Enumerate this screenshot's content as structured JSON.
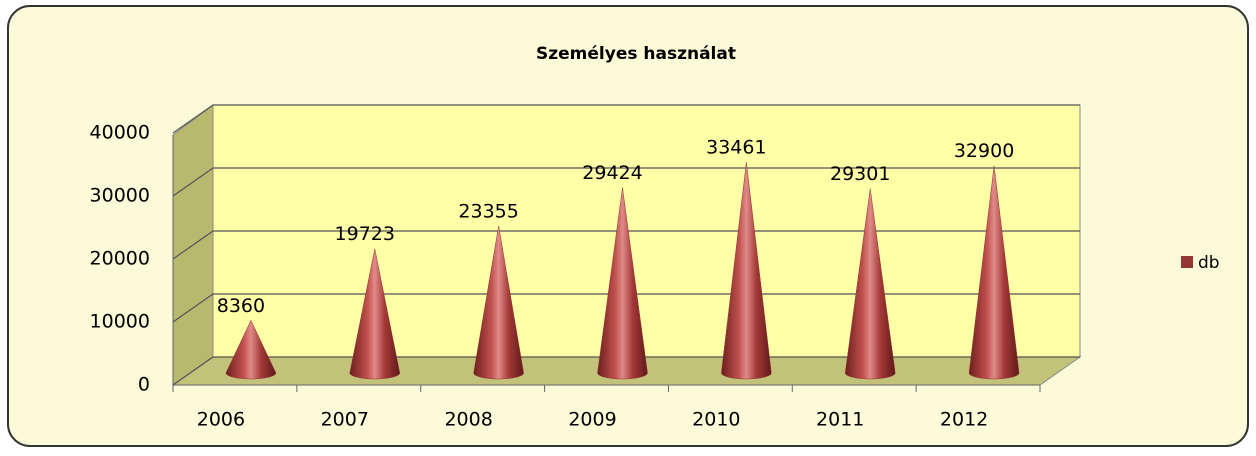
{
  "chart_data": {
    "type": "cone",
    "title": "Személyes használat",
    "categories": [
      "2006",
      "2007",
      "2008",
      "2009",
      "2010",
      "2011",
      "2012"
    ],
    "series": [
      {
        "name": "db",
        "color": "#943634",
        "values": [
          8360,
          19723,
          23355,
          29424,
          33461,
          29301,
          32900
        ]
      }
    ],
    "ylim": [
      0,
      40000
    ],
    "yticks": [
      0,
      10000,
      20000,
      30000,
      40000
    ],
    "grid": true,
    "legend": "right"
  }
}
